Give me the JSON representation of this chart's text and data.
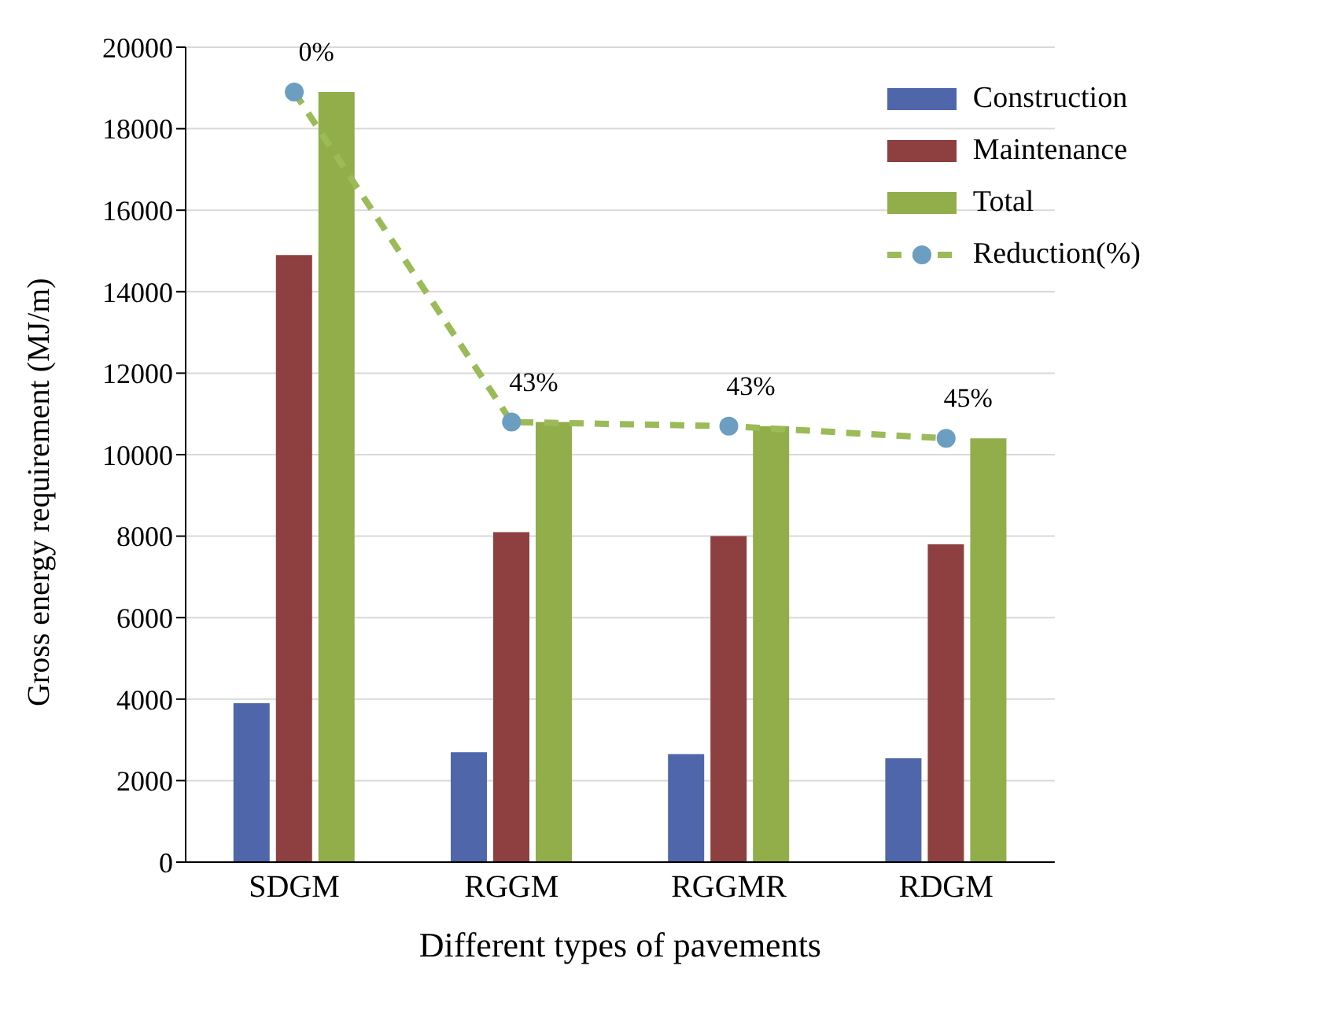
{
  "chart_data": {
    "type": "bar",
    "xlabel": "Different types of pavements",
    "ylabel": "Gross energy requirement (MJ/m)",
    "categories": [
      "SDGM",
      "RGGM",
      "RGGMR",
      "RDGM"
    ],
    "series": [
      {
        "name": "Construction",
        "color": "#4f67aa",
        "values": [
          3900,
          2700,
          2650,
          2550
        ]
      },
      {
        "name": "Maintenance",
        "color": "#8e3f3f",
        "values": [
          14900,
          8100,
          8000,
          7800
        ]
      },
      {
        "name": "Total",
        "color": "#91ae4b",
        "values": [
          18900,
          10800,
          10700,
          10400
        ]
      },
      {
        "name": "Reduction(%)",
        "type": "line",
        "color": "#9bbb59",
        "colors": [
          "#6b9ec0",
          "#6b9ec0",
          "#6b9ec0",
          "#6b9ec0"
        ],
        "marker": "circle",
        "line_style": "dashed",
        "values": [
          18900,
          10800,
          10700,
          10400
        ]
      }
    ],
    "annotations": [
      {
        "text": "0%",
        "x": "SDGM",
        "y": 18900
      },
      {
        "text": "43%",
        "x": "RGGM",
        "y": 10800
      },
      {
        "text": "43%",
        "x": "RGGMR",
        "y": 10700
      },
      {
        "text": "45%",
        "x": "RDGM",
        "y": 10400
      }
    ],
    "ylim": [
      0,
      20000
    ],
    "yticks": [
      0,
      2000,
      4000,
      6000,
      8000,
      10000,
      12000,
      14000,
      16000,
      18000,
      20000
    ],
    "grid": "y",
    "legend": "top right"
  }
}
